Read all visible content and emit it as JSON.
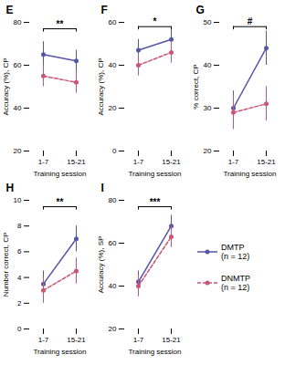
{
  "chart_data": [
    {
      "type": "line",
      "title": "E",
      "xlabel": "Training session",
      "ylabel": "Accuracy (%), CP",
      "categories": [
        "1-7",
        "15-21"
      ],
      "series": [
        {
          "name": "DMTP\n(n = 12)",
          "color": "#5555aa",
          "values": [
            65,
            62
          ],
          "errors": [
            6,
            5
          ],
          "marker": "o",
          "line_style": "solid"
        },
        {
          "name": "DNMTP\n(n = 12)",
          "color": "#cc5577",
          "values": [
            55,
            52
          ],
          "errors": [
            5,
            5
          ],
          "marker": "o",
          "line_style": "dashed"
        }
      ],
      "ylim": [
        20,
        80
      ],
      "yticks": [
        20,
        40,
        60,
        80
      ],
      "grid": false,
      "annotations": [
        {
          "text": "**",
          "x0": "1-7",
          "x1": "15-21",
          "y": 77
        }
      ]
    },
    {
      "type": "line",
      "title": "F",
      "xlabel": "Training session",
      "ylabel": "Accuracy (%), CP",
      "categories": [
        "1-7",
        "15-21"
      ],
      "series": [
        {
          "name": "DMTP\n(n = 12)",
          "color": "#5555aa",
          "values": [
            47,
            52
          ],
          "errors": [
            5,
            5
          ],
          "marker": "o",
          "line_style": "solid"
        },
        {
          "name": "DNMTP\n(n = 12)",
          "color": "#cc5577",
          "values": [
            40,
            46
          ],
          "errors": [
            5,
            5
          ],
          "marker": "o",
          "line_style": "dashed"
        }
      ],
      "ylim": [
        0,
        60
      ],
      "yticks": [
        0,
        20,
        40,
        60
      ],
      "grid": false,
      "annotations": [
        {
          "text": "*",
          "x0": "1-7",
          "x1": "15-21",
          "y": 58
        }
      ]
    },
    {
      "type": "line",
      "title": "G",
      "xlabel": "Training session",
      "ylabel": "% correct, CP",
      "categories": [
        "1-7",
        "15-21"
      ],
      "series": [
        {
          "name": "DMTP\n(n = 12)",
          "color": "#5555aa",
          "values": [
            30,
            44
          ],
          "errors": [
            4,
            4
          ],
          "marker": "o",
          "line_style": "solid"
        },
        {
          "name": "DNMTP\n(n = 12)",
          "color": "#cc5577",
          "values": [
            29,
            31
          ],
          "errors": [
            4,
            4
          ],
          "marker": "o",
          "line_style": "dashed"
        }
      ],
      "ylim": [
        20,
        50
      ],
      "yticks": [
        20,
        30,
        40,
        50
      ],
      "grid": false,
      "annotations": [
        {
          "text": "#",
          "x0": "1-7",
          "x1": "15-21",
          "y": 49
        }
      ]
    },
    {
      "type": "line",
      "title": "H",
      "xlabel": "Training session",
      "ylabel": "Number correct, CP",
      "categories": [
        "1-7",
        "15-21"
      ],
      "series": [
        {
          "name": "DMTP\n(n = 12)",
          "color": "#5555aa",
          "values": [
            3.5,
            7.0
          ],
          "errors": [
            1.0,
            1.0
          ],
          "marker": "o",
          "line_style": "solid"
        },
        {
          "name": "DNMTP\n(n = 12)",
          "color": "#cc5577",
          "values": [
            3.0,
            4.5
          ],
          "errors": [
            1.0,
            1.0
          ],
          "marker": "o",
          "line_style": "dashed"
        }
      ],
      "ylim": [
        0,
        10
      ],
      "yticks": [
        0,
        2,
        4,
        6,
        8,
        10
      ],
      "grid": false,
      "annotations": [
        {
          "text": "**",
          "x0": "1-7",
          "x1": "15-21",
          "y": 9.5
        }
      ]
    },
    {
      "type": "line",
      "title": "I",
      "xlabel": "Training session",
      "ylabel": "Accuracy (%), SP",
      "categories": [
        "1-7",
        "15-21"
      ],
      "series": [
        {
          "name": "DMTP\n(n = 12)",
          "color": "#5555aa",
          "values": [
            42,
            68
          ],
          "errors": [
            5,
            5
          ],
          "marker": "o",
          "line_style": "solid"
        },
        {
          "name": "DNMTP\n(n = 12)",
          "color": "#cc5577",
          "values": [
            40,
            63
          ],
          "errors": [
            5,
            5
          ],
          "marker": "o",
          "line_style": "dashed"
        }
      ],
      "ylim": [
        20,
        80
      ],
      "yticks": [
        20,
        40,
        60,
        80
      ],
      "grid": false,
      "annotations": [
        {
          "text": "***",
          "x0": "1-7",
          "x1": "15-21",
          "y": 77
        }
      ]
    }
  ]
}
